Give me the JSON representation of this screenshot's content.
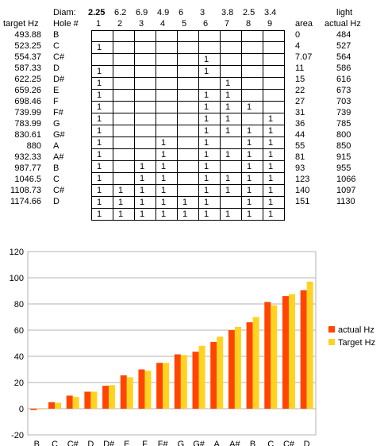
{
  "table": {
    "diam_label": "Diam:",
    "diameters": [
      "2.25",
      "6.2",
      "6.9",
      "4.9",
      "6",
      "3",
      "3.8",
      "2.5",
      "3.4"
    ],
    "hole_label": "Hole #",
    "hole_numbers": [
      "1",
      "2",
      "3",
      "4",
      "5",
      "6",
      "7",
      "8",
      "9"
    ],
    "target_hz_header": "target Hz",
    "area_header": "area",
    "light_header": "light",
    "actual_hz_header": "actual Hz",
    "rows": [
      {
        "target": "493.88",
        "note": "B",
        "holes": [
          "",
          "",
          "",
          "",
          "",
          "",
          "",
          "",
          ""
        ],
        "area": "0",
        "actual": "484"
      },
      {
        "target": "523.25",
        "note": "C",
        "holes": [
          "1",
          "",
          "",
          "",
          "",
          "",
          "",
          "",
          ""
        ],
        "area": "4",
        "actual": "527"
      },
      {
        "target": "554.37",
        "note": "C#",
        "holes": [
          "",
          "",
          "",
          "",
          "",
          "1",
          "",
          "",
          ""
        ],
        "area": "7.07",
        "actual": "564"
      },
      {
        "target": "587.33",
        "note": "D",
        "holes": [
          "1",
          "",
          "",
          "",
          "",
          "1",
          "",
          "",
          ""
        ],
        "area": "11",
        "actual": "586"
      },
      {
        "target": "622.25",
        "note": "D#",
        "holes": [
          "1",
          "",
          "",
          "",
          "",
          "",
          "1",
          "",
          ""
        ],
        "area": "15",
        "actual": "616"
      },
      {
        "target": "659.26",
        "note": "E",
        "holes": [
          "1",
          "",
          "",
          "",
          "",
          "1",
          "1",
          "",
          ""
        ],
        "area": "22",
        "actual": "673"
      },
      {
        "target": "698.46",
        "note": "F",
        "holes": [
          "1",
          "",
          "",
          "",
          "",
          "1",
          "1",
          "1",
          ""
        ],
        "area": "27",
        "actual": "703"
      },
      {
        "target": "739.99",
        "note": "F#",
        "holes": [
          "1",
          "",
          "",
          "",
          "",
          "1",
          "1",
          "",
          "1"
        ],
        "area": "31",
        "actual": "739"
      },
      {
        "target": "783.99",
        "note": "G",
        "holes": [
          "1",
          "",
          "",
          "",
          "",
          "1",
          "1",
          "1",
          "1"
        ],
        "area": "36",
        "actual": "785"
      },
      {
        "target": "830.61",
        "note": "G#",
        "holes": [
          "1",
          "",
          "",
          "1",
          "",
          "1",
          "",
          "1",
          "1"
        ],
        "area": "44",
        "actual": "800"
      },
      {
        "target": "880",
        "note": "A",
        "holes": [
          "1",
          "",
          "",
          "1",
          "",
          "1",
          "1",
          "1",
          "1"
        ],
        "area": "55",
        "actual": "850"
      },
      {
        "target": "932.33",
        "note": "A#",
        "holes": [
          "1",
          "",
          "1",
          "1",
          "",
          "1",
          "",
          "1",
          "1"
        ],
        "area": "81",
        "actual": "915"
      },
      {
        "target": "987.77",
        "note": "B",
        "holes": [
          "1",
          "",
          "1",
          "1",
          "",
          "1",
          "1",
          "1",
          "1"
        ],
        "area": "93",
        "actual": "955"
      },
      {
        "target": "1046.5",
        "note": "C",
        "holes": [
          "1",
          "1",
          "1",
          "1",
          "",
          "1",
          "1",
          "1",
          "1"
        ],
        "area": "123",
        "actual": "1066"
      },
      {
        "target": "1108.73",
        "note": "C#",
        "holes": [
          "1",
          "1",
          "1",
          "1",
          "1",
          "1",
          "",
          "1",
          "1"
        ],
        "area": "140",
        "actual": "1097"
      },
      {
        "target": "1174.66",
        "note": "D",
        "holes": [
          "1",
          "1",
          "1",
          "1",
          "1",
          "1",
          "1",
          "1",
          "1"
        ],
        "area": "151",
        "actual": "1130"
      }
    ]
  },
  "chart_data": {
    "type": "bar",
    "categories": [
      "B",
      "C",
      "C#",
      "D",
      "D#",
      "E",
      "F",
      "F#",
      "G",
      "G#",
      "A",
      "A#",
      "B",
      "C",
      "C#",
      "D"
    ],
    "series": [
      {
        "name": "actual Hz",
        "color": "#ff4500",
        "values": [
          -1,
          5,
          10,
          13,
          17.5,
          25.5,
          30,
          35,
          41.5,
          43.5,
          51,
          60,
          66,
          81.5,
          86,
          90.5
        ]
      },
      {
        "name": "Target Hz",
        "color": "#ffd320",
        "values": [
          0,
          4.5,
          9,
          13,
          18,
          24,
          29,
          35,
          41,
          48,
          55,
          62.5,
          70,
          79,
          87.5,
          97
        ]
      }
    ],
    "ylim": [
      -20,
      120
    ],
    "yticks": [
      "-20",
      "0",
      "20",
      "40",
      "60",
      "80",
      "100",
      "120"
    ],
    "grid": true,
    "legend_position": "right"
  }
}
